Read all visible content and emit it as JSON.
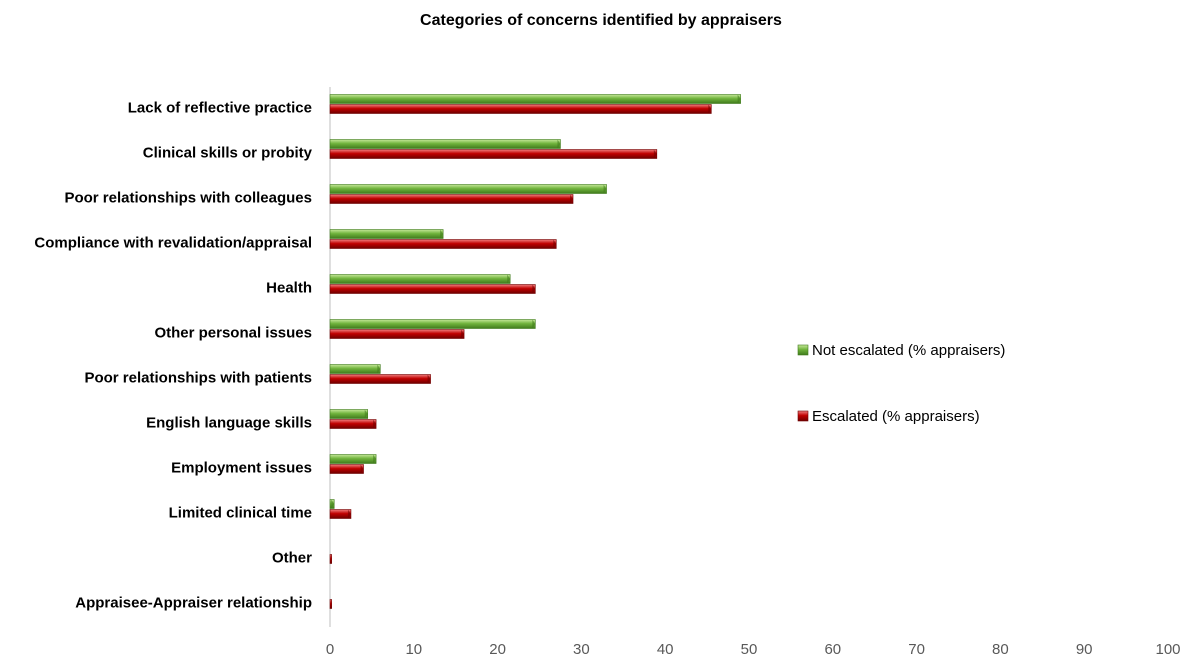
{
  "chart_data": {
    "type": "bar",
    "orientation": "horizontal",
    "title": "Categories of concerns identified by appraisers",
    "xlabel": "",
    "ylabel": "",
    "xlim": [
      0,
      100
    ],
    "x_ticks": [
      0,
      10,
      20,
      30,
      40,
      50,
      60,
      70,
      80,
      90,
      100
    ],
    "grid": false,
    "legend_position": "right",
    "categories": [
      "Lack of reflective practice",
      "Clinical skills or probity",
      "Poor relationships with colleagues",
      "Compliance with revalidation/appraisal",
      "Health",
      "Other personal issues",
      "Poor relationships with patients",
      "English language skills",
      "Employment issues",
      "Limited clinical time",
      "Other",
      "Appraisee-Appraiser relationship"
    ],
    "series": [
      {
        "name": "Not escalated (% appraisers)",
        "color": "#70B33C",
        "values": [
          49,
          27.5,
          33,
          13.5,
          21.5,
          24.5,
          6,
          4.5,
          5.5,
          0.5,
          0,
          0
        ]
      },
      {
        "name": "Escalated (% appraisers)",
        "color": "#C00000",
        "values": [
          45.5,
          39,
          29,
          27,
          24.5,
          16,
          12,
          5.5,
          4,
          2.5,
          0.2,
          0.2
        ]
      }
    ]
  }
}
